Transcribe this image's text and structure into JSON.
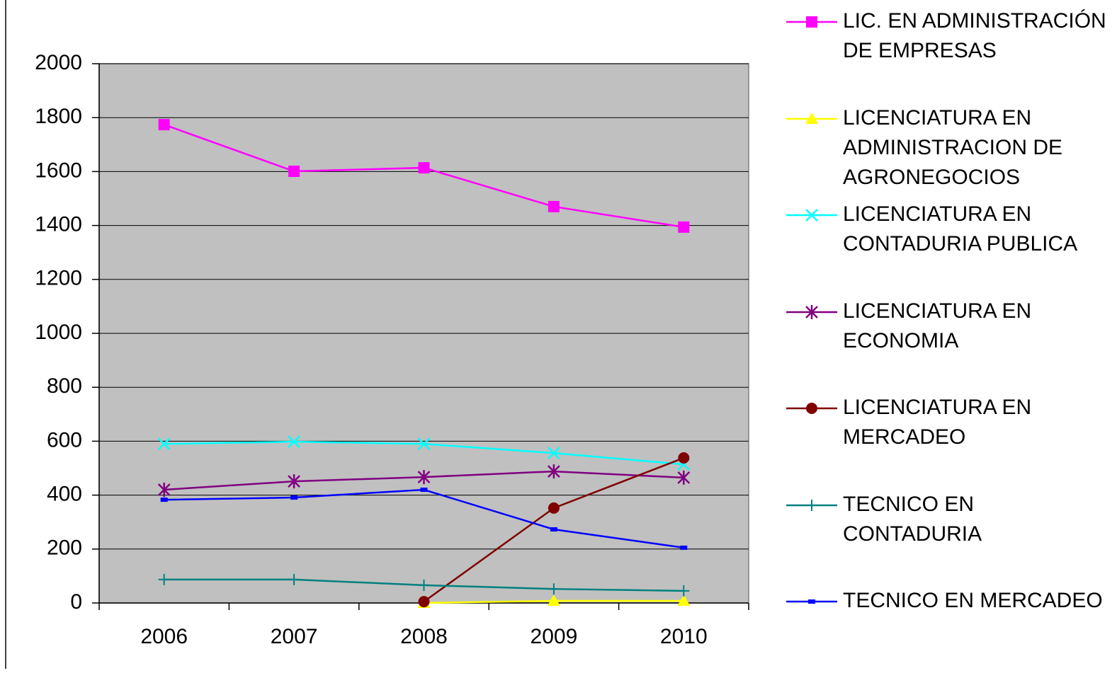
{
  "chart_data": {
    "type": "line",
    "categories": [
      "2006",
      "2007",
      "2008",
      "2009",
      "2010"
    ],
    "ylim": [
      0,
      2000
    ],
    "yticks": [
      0,
      200,
      400,
      600,
      800,
      1000,
      1200,
      1400,
      1600,
      1800,
      2000
    ],
    "grid": true,
    "series": [
      {
        "name": "LIC. EN ADMINISTRACIÓN DE EMPRESAS",
        "color": "#ff00ff",
        "marker": "square",
        "values": [
          1774,
          1601,
          1614,
          1470,
          1394
        ]
      },
      {
        "name": "LICENCIATURA EN ADMINISTRACION DE AGRONEGOCIOS",
        "color": "#ffff00",
        "marker": "triangle",
        "values": [
          null,
          null,
          0,
          8,
          8
        ]
      },
      {
        "name": "LICENCIATURA EN CONTADURIA PUBLICA",
        "color": "#00ffff",
        "marker": "x",
        "values": [
          590,
          598,
          590,
          556,
          514
        ]
      },
      {
        "name": "LICENCIATURA EN ECONOMIA",
        "color": "#800080",
        "marker": "asterisk",
        "values": [
          420,
          451,
          467,
          488,
          465
        ]
      },
      {
        "name": "LICENCIATURA EN MERCADEO",
        "color": "#800000",
        "marker": "circle",
        "values": [
          null,
          null,
          5,
          352,
          538
        ]
      },
      {
        "name": "TECNICO EN CONTADURIA",
        "color": "#008080",
        "marker": "plus",
        "values": [
          87,
          87,
          66,
          52,
          45
        ]
      },
      {
        "name": "TECNICO EN MERCADEO",
        "color": "#0000ff",
        "marker": "dash",
        "values": [
          383,
          391,
          420,
          273,
          205
        ]
      }
    ]
  }
}
